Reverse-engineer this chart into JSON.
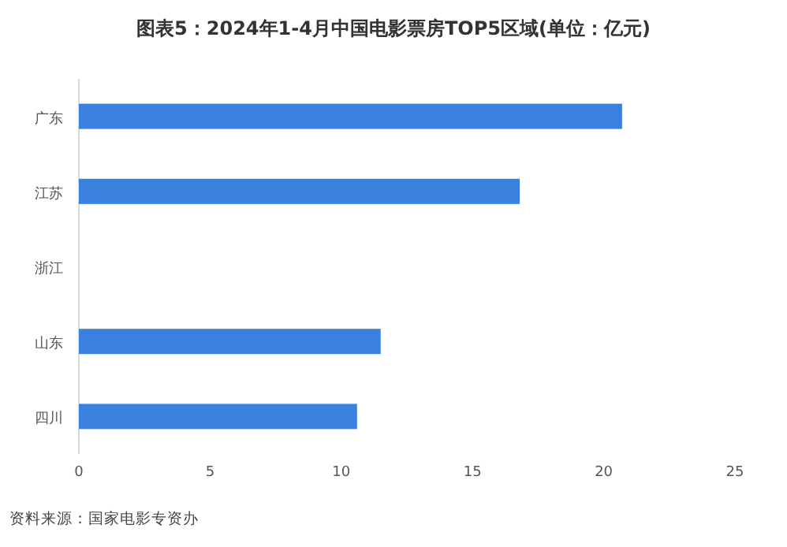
{
  "chart_data": {
    "type": "bar",
    "orientation": "horizontal",
    "title": "图表5：2024年1-4月中国电影票房TOP5区域(单位：亿元)",
    "categories": [
      "广东",
      "江苏",
      "浙江",
      "山东",
      "四川"
    ],
    "values": [
      20.7,
      16.8,
      null,
      11.5,
      10.6
    ],
    "color": "#3a80df",
    "xlim": [
      0,
      25
    ],
    "xticks": [
      0,
      5,
      10,
      15,
      20,
      25
    ],
    "grid": false,
    "annotations": [
      "资料来源：国家电影专资办"
    ]
  }
}
